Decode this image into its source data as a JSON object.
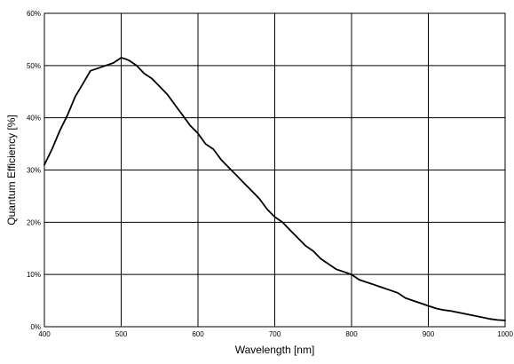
{
  "chart_data": {
    "type": "line",
    "title": "",
    "xlabel": "Wavelength [nm]",
    "ylabel": "Quantum Efficiency [%]",
    "xlim": [
      400,
      1000
    ],
    "ylim": [
      0,
      60
    ],
    "grid": true,
    "legend": "none",
    "x_ticks": [
      400,
      500,
      600,
      700,
      800,
      900,
      1000
    ],
    "x_tick_labels": [
      "400",
      "500",
      "600",
      "700",
      "800",
      "900",
      "1000"
    ],
    "y_ticks": [
      0,
      10,
      20,
      30,
      40,
      50,
      60
    ],
    "y_tick_labels": [
      "0%",
      "10%",
      "20%",
      "30%",
      "40%",
      "50%",
      "60%"
    ],
    "series": [
      {
        "color": "#000000",
        "x": [
          400,
          410,
          420,
          430,
          440,
          450,
          460,
          470,
          480,
          490,
          500,
          505,
          510,
          520,
          530,
          540,
          550,
          560,
          570,
          580,
          590,
          600,
          610,
          620,
          630,
          640,
          650,
          660,
          670,
          680,
          690,
          700,
          710,
          720,
          730,
          740,
          750,
          760,
          770,
          780,
          790,
          800,
          810,
          820,
          830,
          840,
          850,
          860,
          870,
          880,
          890,
          900,
          910,
          920,
          930,
          940,
          950,
          960,
          970,
          980,
          990,
          1000
        ],
        "y": [
          31.0,
          34.0,
          37.5,
          40.5,
          44.0,
          46.5,
          49.0,
          49.5,
          50.0,
          50.5,
          51.5,
          51.3,
          51.0,
          50.0,
          48.5,
          47.5,
          46.0,
          44.5,
          42.5,
          40.5,
          38.5,
          37.0,
          35.0,
          34.0,
          32.0,
          30.5,
          29.0,
          27.5,
          26.0,
          24.5,
          22.5,
          21.0,
          20.0,
          18.5,
          17.0,
          15.5,
          14.5,
          13.0,
          12.0,
          11.0,
          10.5,
          10.0,
          9.0,
          8.5,
          8.0,
          7.5,
          7.0,
          6.5,
          5.5,
          5.0,
          4.5,
          4.0,
          3.5,
          3.2,
          3.0,
          2.7,
          2.4,
          2.1,
          1.8,
          1.5,
          1.3,
          1.2
        ]
      }
    ]
  }
}
